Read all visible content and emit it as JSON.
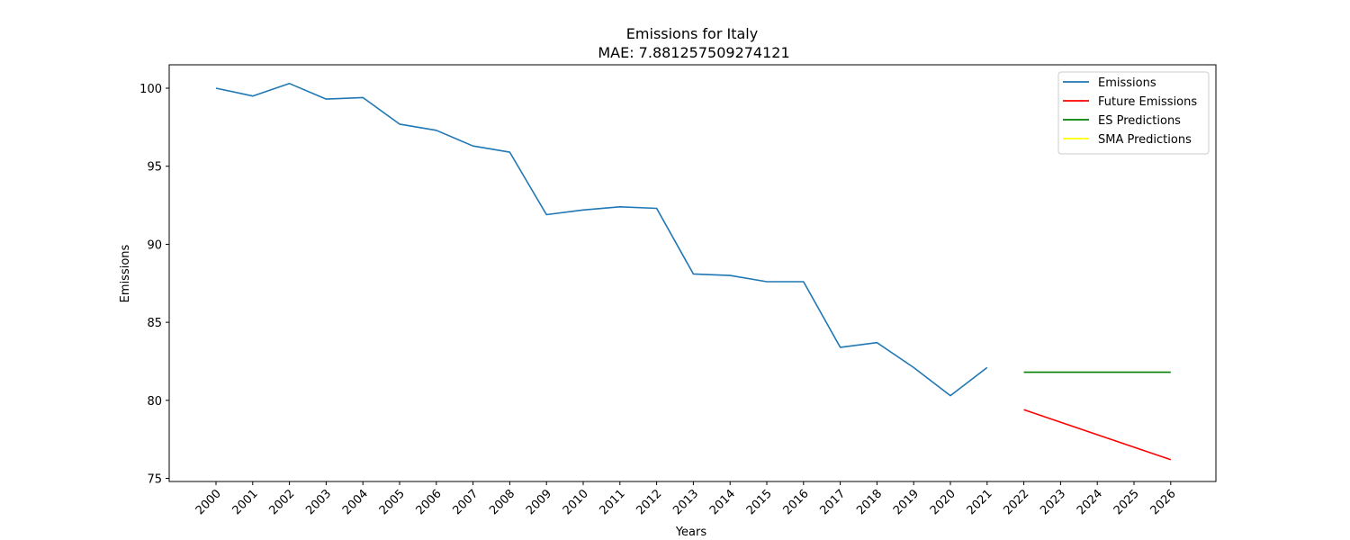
{
  "chart_data": {
    "type": "line",
    "title": "Emissions for Italy",
    "subtitle": "MAE: 7.881257509274121",
    "xlabel": "Years",
    "ylabel": "Emissions",
    "ylim": [
      74.8,
      101.5
    ],
    "yticks": [
      75,
      80,
      85,
      90,
      95,
      100
    ],
    "x_categories": [
      "2000",
      "2001",
      "2002",
      "2003",
      "2004",
      "2005",
      "2006",
      "2007",
      "2008",
      "2009",
      "2010",
      "2011",
      "2012",
      "2013",
      "2014",
      "2015",
      "2016",
      "2017",
      "2018",
      "2019",
      "2020",
      "2021",
      "2022",
      "2023",
      "2024",
      "2025",
      "2026"
    ],
    "legend_position": "top-right",
    "grid": false,
    "series": [
      {
        "name": "Emissions",
        "color": "#1f77b4",
        "x": [
          "2000",
          "2001",
          "2002",
          "2003",
          "2004",
          "2005",
          "2006",
          "2007",
          "2008",
          "2009",
          "2010",
          "2011",
          "2012",
          "2013",
          "2014",
          "2015",
          "2016",
          "2017",
          "2018",
          "2019",
          "2020",
          "2021"
        ],
        "values": [
          100.0,
          99.5,
          100.3,
          99.3,
          99.4,
          97.7,
          97.3,
          96.3,
          95.9,
          91.9,
          92.2,
          92.4,
          92.3,
          88.1,
          88.0,
          87.6,
          87.6,
          83.4,
          83.7,
          82.1,
          80.3,
          82.1
        ]
      },
      {
        "name": "Future Emissions",
        "color": "#ff0000",
        "x": [
          "2022",
          "2023",
          "2024",
          "2025",
          "2026"
        ],
        "values": [
          79.4,
          78.6,
          77.8,
          77.0,
          76.2
        ]
      },
      {
        "name": "ES Predictions",
        "color": "#008000",
        "x": [
          "2022",
          "2023",
          "2024",
          "2025",
          "2026"
        ],
        "values": [
          81.8,
          81.8,
          81.8,
          81.8,
          81.8
        ]
      },
      {
        "name": "SMA Predictions",
        "color": "#ffff00",
        "x": [],
        "values": []
      }
    ]
  }
}
